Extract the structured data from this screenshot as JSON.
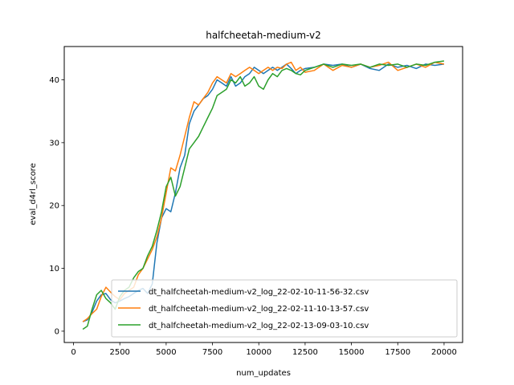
{
  "chart_data": {
    "type": "line",
    "title": "halfcheetah-medium-v2",
    "xlabel": "num_updates",
    "ylabel": "eval_d4rl_score",
    "xlim": [
      -500,
      21000
    ],
    "ylim": [
      -1.8,
      45.3
    ],
    "xticks": [
      0,
      2500,
      5000,
      7500,
      10000,
      12500,
      15000,
      17500,
      20000
    ],
    "yticks": [
      0,
      10,
      20,
      30,
      40
    ],
    "grid": false,
    "legend_position": "lower-right",
    "series": [
      {
        "name": "dt_halfcheetah-medium-v2_log_22-02-10-11-56-32.csv",
        "color": "#1f77b4",
        "points": [
          [
            500,
            1.5
          ],
          [
            750,
            1.8
          ],
          [
            1000,
            3
          ],
          [
            1250,
            4.8
          ],
          [
            1500,
            5.8
          ],
          [
            1750,
            6
          ],
          [
            2000,
            5
          ],
          [
            2250,
            4.5
          ],
          [
            2500,
            4.8
          ],
          [
            2750,
            5.2
          ],
          [
            3000,
            5.5
          ],
          [
            3250,
            6
          ],
          [
            3500,
            6.5
          ],
          [
            3750,
            6.8
          ],
          [
            4000,
            6
          ],
          [
            4250,
            7.5
          ],
          [
            4500,
            14
          ],
          [
            4750,
            18
          ],
          [
            5000,
            19.5
          ],
          [
            5250,
            19
          ],
          [
            5500,
            22
          ],
          [
            5750,
            26
          ],
          [
            6000,
            28
          ],
          [
            6250,
            33
          ],
          [
            6500,
            35
          ],
          [
            6750,
            36
          ],
          [
            7000,
            37
          ],
          [
            7250,
            37.5
          ],
          [
            7500,
            38.5
          ],
          [
            7750,
            40
          ],
          [
            8000,
            39.5
          ],
          [
            8250,
            39
          ],
          [
            8500,
            40.5
          ],
          [
            8750,
            39
          ],
          [
            9000,
            39.5
          ],
          [
            9250,
            40.5
          ],
          [
            9500,
            41
          ],
          [
            9750,
            42
          ],
          [
            10000,
            41.5
          ],
          [
            10250,
            41
          ],
          [
            10500,
            41.5
          ],
          [
            10750,
            42
          ],
          [
            11000,
            41.5
          ],
          [
            11250,
            42
          ],
          [
            11500,
            42.5
          ],
          [
            11750,
            41.8
          ],
          [
            12000,
            41
          ],
          [
            12250,
            41.5
          ],
          [
            12500,
            41.8
          ],
          [
            13000,
            42
          ],
          [
            13500,
            42.5
          ],
          [
            14000,
            42.3
          ],
          [
            14500,
            42.5
          ],
          [
            15000,
            42
          ],
          [
            15500,
            42.5
          ],
          [
            16000,
            41.8
          ],
          [
            16500,
            41.5
          ],
          [
            17000,
            42.5
          ],
          [
            17500,
            42
          ],
          [
            18000,
            42.3
          ],
          [
            18500,
            41.8
          ],
          [
            19000,
            42.5
          ],
          [
            19500,
            42.3
          ],
          [
            20000,
            42.5
          ]
        ]
      },
      {
        "name": "dt_halfcheetah-medium-v2_log_22-02-11-10-13-57.csv",
        "color": "#ff7f0e",
        "points": [
          [
            500,
            1.5
          ],
          [
            750,
            2
          ],
          [
            1000,
            2.8
          ],
          [
            1250,
            3.5
          ],
          [
            1500,
            5.5
          ],
          [
            1750,
            7
          ],
          [
            2000,
            6.2
          ],
          [
            2250,
            5.5
          ],
          [
            2500,
            5
          ],
          [
            2750,
            6
          ],
          [
            3000,
            6.5
          ],
          [
            3250,
            7
          ],
          [
            3500,
            9
          ],
          [
            3750,
            10
          ],
          [
            4000,
            11.5
          ],
          [
            4250,
            13
          ],
          [
            4500,
            15
          ],
          [
            4750,
            18
          ],
          [
            5000,
            22
          ],
          [
            5250,
            26
          ],
          [
            5500,
            25.5
          ],
          [
            5750,
            28
          ],
          [
            6000,
            31
          ],
          [
            6250,
            34
          ],
          [
            6500,
            36.5
          ],
          [
            6750,
            36
          ],
          [
            7000,
            37
          ],
          [
            7250,
            38
          ],
          [
            7500,
            39.5
          ],
          [
            7750,
            40.5
          ],
          [
            8000,
            40
          ],
          [
            8250,
            39.5
          ],
          [
            8500,
            41
          ],
          [
            8750,
            40.5
          ],
          [
            9000,
            41
          ],
          [
            9250,
            41.5
          ],
          [
            9500,
            42
          ],
          [
            9750,
            41.5
          ],
          [
            10000,
            41
          ],
          [
            10250,
            41.5
          ],
          [
            10500,
            42
          ],
          [
            10750,
            41.5
          ],
          [
            11000,
            42
          ],
          [
            11250,
            41.8
          ],
          [
            11500,
            42.5
          ],
          [
            11750,
            42.8
          ],
          [
            12000,
            41.5
          ],
          [
            12250,
            42
          ],
          [
            12500,
            41.2
          ],
          [
            13000,
            41.5
          ],
          [
            13500,
            42.5
          ],
          [
            14000,
            41.5
          ],
          [
            14500,
            42.3
          ],
          [
            15000,
            42
          ],
          [
            15500,
            42.5
          ],
          [
            16000,
            42
          ],
          [
            16500,
            42.3
          ],
          [
            17000,
            42.8
          ],
          [
            17500,
            41.5
          ],
          [
            18000,
            42
          ],
          [
            18500,
            42.5
          ],
          [
            19000,
            42
          ],
          [
            19500,
            42.8
          ],
          [
            20000,
            42.5
          ]
        ]
      },
      {
        "name": "dt_halfcheetah-medium-v2_log_22-02-13-09-03-10.csv",
        "color": "#2ca02c",
        "points": [
          [
            500,
            0.3
          ],
          [
            750,
            0.8
          ],
          [
            1000,
            3.5
          ],
          [
            1250,
            5.8
          ],
          [
            1500,
            6.5
          ],
          [
            1750,
            5.2
          ],
          [
            2000,
            4.5
          ],
          [
            2250,
            3.5
          ],
          [
            2500,
            5.5
          ],
          [
            2750,
            6.5
          ],
          [
            3000,
            7
          ],
          [
            3250,
            8.5
          ],
          [
            3500,
            9.5
          ],
          [
            3750,
            10
          ],
          [
            4000,
            12
          ],
          [
            4250,
            13.5
          ],
          [
            4500,
            16
          ],
          [
            4750,
            19
          ],
          [
            5000,
            23
          ],
          [
            5250,
            24.5
          ],
          [
            5500,
            21.5
          ],
          [
            5750,
            23
          ],
          [
            6000,
            26
          ],
          [
            6250,
            29
          ],
          [
            6500,
            30
          ],
          [
            6750,
            31
          ],
          [
            7000,
            32.5
          ],
          [
            7250,
            34
          ],
          [
            7500,
            35.5
          ],
          [
            7750,
            37.5
          ],
          [
            8000,
            38
          ],
          [
            8250,
            38.5
          ],
          [
            8500,
            40
          ],
          [
            8750,
            39.5
          ],
          [
            9000,
            40.5
          ],
          [
            9250,
            39
          ],
          [
            9500,
            39.5
          ],
          [
            9750,
            40.5
          ],
          [
            10000,
            39
          ],
          [
            10250,
            38.5
          ],
          [
            10500,
            40
          ],
          [
            10750,
            41
          ],
          [
            11000,
            40.5
          ],
          [
            11250,
            41.5
          ],
          [
            11500,
            41.8
          ],
          [
            11750,
            41.5
          ],
          [
            12000,
            41
          ],
          [
            12250,
            40.8
          ],
          [
            12500,
            41.5
          ],
          [
            13000,
            42
          ],
          [
            13500,
            42.5
          ],
          [
            14000,
            42
          ],
          [
            14500,
            42.5
          ],
          [
            15000,
            42.3
          ],
          [
            15500,
            42.5
          ],
          [
            16000,
            42
          ],
          [
            16500,
            42.5
          ],
          [
            17000,
            42.3
          ],
          [
            17500,
            42.5
          ],
          [
            18000,
            42
          ],
          [
            18500,
            42.5
          ],
          [
            19000,
            42.3
          ],
          [
            19500,
            42.8
          ],
          [
            20000,
            43
          ]
        ]
      }
    ]
  }
}
